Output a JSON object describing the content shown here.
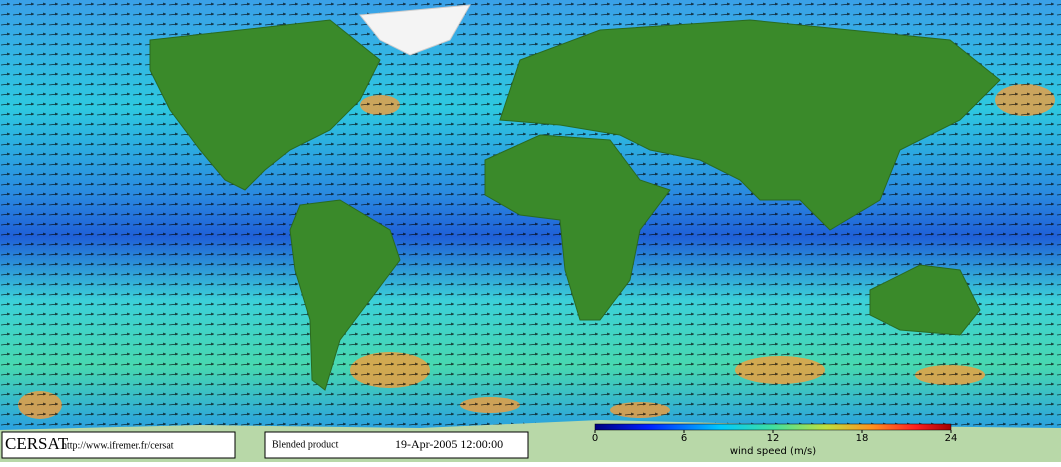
{
  "footer": {
    "logo": "CERSAT",
    "url": "http://www.ifremer.fr/cersat",
    "product": "Blended product",
    "date": "19-Apr-2005 12:00:00"
  },
  "colorbar": {
    "label": "wind speed (m/s)",
    "lim": [
      0,
      24
    ],
    "ticks": [
      0,
      6,
      12,
      18,
      24
    ]
  }
}
